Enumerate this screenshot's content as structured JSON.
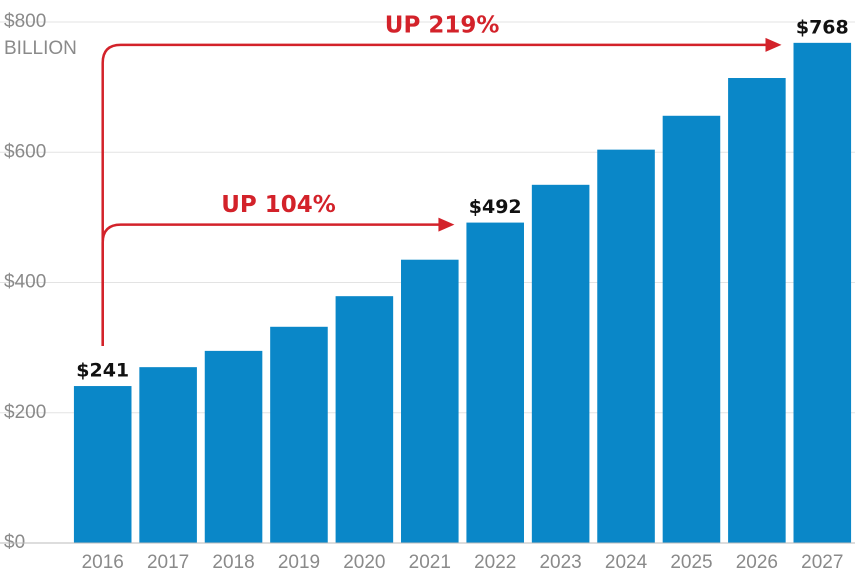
{
  "chart_data": {
    "type": "bar",
    "y_unit_label": "BILLION",
    "categories": [
      "2016",
      "2017",
      "2018",
      "2019",
      "2020",
      "2021",
      "2022",
      "2023",
      "2024",
      "2025",
      "2026",
      "2027"
    ],
    "values": [
      241,
      270,
      295,
      332,
      379,
      435,
      492,
      550,
      604,
      656,
      714,
      768
    ],
    "value_labels": [
      "$241",
      null,
      null,
      null,
      null,
      null,
      "$492",
      null,
      null,
      null,
      null,
      "$768"
    ],
    "color": "#0a87c8",
    "ylim": [
      0,
      800
    ],
    "yticks": [
      {
        "value": 0,
        "label": "$0"
      },
      {
        "value": 200,
        "label": "$200"
      },
      {
        "value": 400,
        "label": "$400"
      },
      {
        "value": 600,
        "label": "$600"
      },
      {
        "value": 800,
        "label": "$800"
      }
    ],
    "grid": true,
    "annotations": [
      {
        "text": "UP 104%",
        "from": "2016",
        "to": "2022",
        "color": "#d3222a"
      },
      {
        "text": "UP 219%",
        "from": "2016",
        "to": "2027",
        "color": "#d3222a"
      }
    ]
  }
}
